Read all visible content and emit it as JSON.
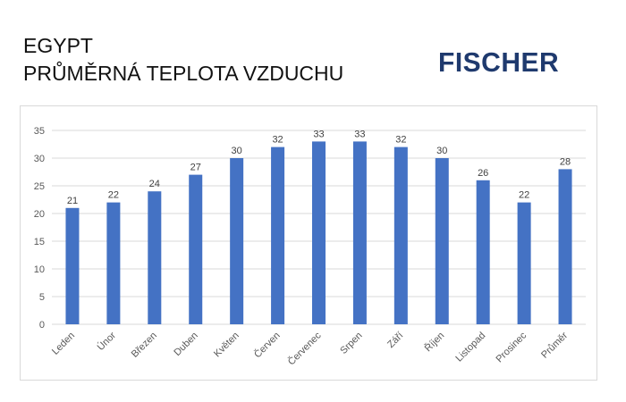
{
  "header": {
    "title_line1": "EGYPT",
    "title_line2": "PRŮMĚRNÁ TEPLOTA VZDUCHU",
    "logo_text": "FISCHER",
    "logo_color": "#1f3a6e"
  },
  "chart_data": {
    "type": "bar",
    "title": "",
    "xlabel": "",
    "ylabel": "",
    "categories": [
      "Leden",
      "Únor",
      "Březen",
      "Duben",
      "Květen",
      "Červen",
      "Červenec",
      "Srpen",
      "Září",
      "Říjen",
      "Listopad",
      "Prosinec",
      "Průměr"
    ],
    "values": [
      21,
      22,
      24,
      27,
      30,
      32,
      33,
      33,
      32,
      30,
      26,
      22,
      28
    ],
    "data_labels": [
      "21",
      "22",
      "24",
      "27",
      "30",
      "32",
      "33",
      "33",
      "32",
      "30",
      "26",
      "22",
      "28"
    ],
    "ylim": [
      0,
      35
    ],
    "yticks": [
      0,
      5,
      10,
      15,
      20,
      25,
      30,
      35
    ],
    "grid": true,
    "legend": "none",
    "bar_color": "#4472c4",
    "grid_color": "#d9d9d9"
  }
}
